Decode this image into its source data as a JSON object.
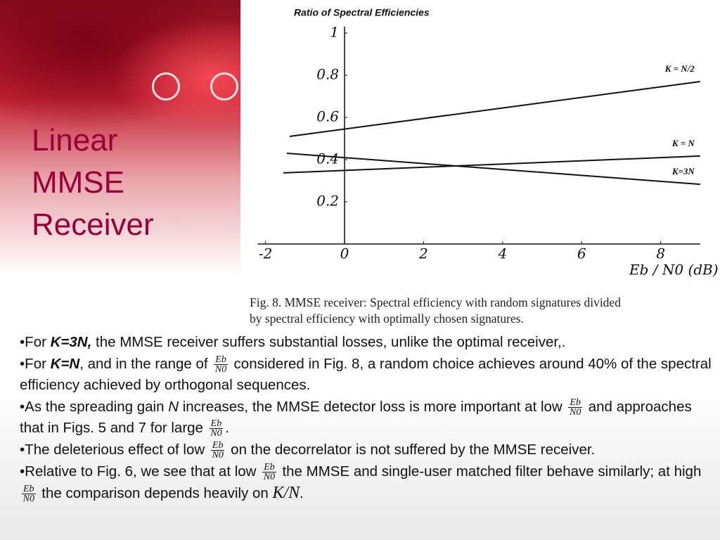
{
  "slide_title": [
    "Linear",
    "MMSE",
    "Receiver"
  ],
  "chart_data": {
    "type": "line",
    "title": "Ratio of Spectral Efficiencies",
    "xlabel": "Eb / N0  (dB)",
    "xlim": [
      -2.2,
      9
    ],
    "ylim": [
      0,
      1
    ],
    "xticks": [
      -2,
      0,
      2,
      4,
      6,
      8
    ],
    "yticks": [
      0.2,
      0.4,
      0.6,
      0.8,
      1
    ],
    "color": "#111111",
    "series": [
      {
        "name": "K = N/2",
        "x": [
          -1.39,
          9
        ],
        "values": [
          0.51,
          0.77
        ]
      },
      {
        "name": "K = N",
        "x": [
          -1.55,
          9
        ],
        "values": [
          0.337,
          0.417
        ]
      },
      {
        "name": "K=3N",
        "x": [
          -1.46,
          9
        ],
        "values": [
          0.43,
          0.283
        ]
      }
    ]
  },
  "caption": [
    "Fig. 8.   MMSE receiver: Spectral efficiency with random signatures divided",
    "by spectral efficiency with optimally chosen signatures."
  ],
  "bullets": [
    [
      {
        "text": "•For "
      },
      {
        "bold_italic": "K=3N,"
      },
      {
        "text": " the MMSE receiver suffers substantial losses, unlike the optimal receiver,."
      }
    ],
    [
      {
        "text": "•For "
      },
      {
        "bold_italic": "K=N"
      },
      {
        "text": ", and in the range of "
      },
      {
        "frac": [
          "Eb",
          "N0"
        ]
      },
      {
        "text": " considered in Fig. 8, a random choice achieves around 40% of the spectral efficiency achieved by orthogonal sequences."
      }
    ],
    [
      {
        "text": "•As the spreading gain "
      },
      {
        "italic": "N"
      },
      {
        "text": " increases, the MMSE detector loss is more important at low "
      },
      {
        "frac": [
          "Eb",
          "N0"
        ]
      },
      {
        "text": " and approaches that in Figs. 5 and 7 for large "
      },
      {
        "frac": [
          "Eb",
          "N0"
        ]
      },
      {
        "text": "."
      }
    ],
    [
      {
        "text": "•The deleterious effect of low "
      },
      {
        "frac": [
          "Eb",
          "N0"
        ]
      },
      {
        "text": " on the decorrelator is not suffered by the MMSE receiver."
      }
    ],
    [
      {
        "text": "•Relative to Fig. 6, we see that at low "
      },
      {
        "frac": [
          "Eb",
          "N0"
        ]
      },
      {
        "text": " the MMSE and single-user matched filter behave similarly; at high "
      },
      {
        "frac": [
          "Eb",
          "N0"
        ]
      },
      {
        "text": " the comparison depends heavily on "
      },
      {
        "math": "K/N"
      },
      {
        "text": "."
      }
    ]
  ]
}
